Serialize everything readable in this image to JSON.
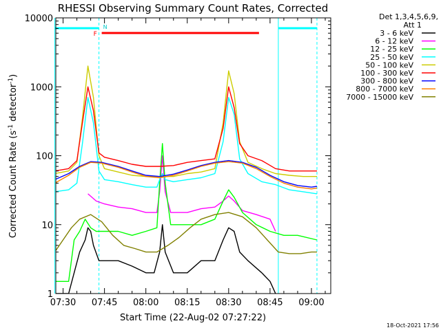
{
  "chart_data": {
    "type": "line",
    "title": "RHESSI Observing Summary Count Rates, Corrected",
    "xlabel": "Start Time (22-Aug-02 07:27:22)",
    "ylabel_main": "Corrected Count Rate (s",
    "ylabel_sup": "-1",
    "ylabel_tail": " detector",
    "ylabel_end": ")",
    "yscale": "log",
    "ylim": [
      1,
      10000
    ],
    "xlim": [
      "07:27:22",
      "09:07:00"
    ],
    "x_ticks": [
      "07:30",
      "07:45",
      "08:00",
      "08:15",
      "08:30",
      "08:45",
      "09:00"
    ],
    "y_ticks": [
      "1",
      "10",
      "100",
      "1000",
      "10000"
    ],
    "grid": false,
    "legend_position": "right",
    "legend_header": [
      "Det 1,3,4,5,6,9,",
      "Att 1"
    ],
    "series": [
      {
        "name": "3 - 6 keV",
        "color": "#000000",
        "points": [
          [
            "07:27",
            1
          ],
          [
            "07:32",
            1
          ],
          [
            "07:36",
            4
          ],
          [
            "07:38",
            6
          ],
          [
            "07:39",
            9
          ],
          [
            "07:40",
            8
          ],
          [
            "07:41",
            5
          ],
          [
            "07:43",
            3
          ],
          [
            "07:45",
            3
          ],
          [
            "07:50",
            3
          ],
          [
            "07:55",
            2.5
          ],
          [
            "08:00",
            2
          ],
          [
            "08:03",
            2
          ],
          [
            "08:05",
            4
          ],
          [
            "08:06",
            10
          ],
          [
            "08:07",
            4
          ],
          [
            "08:10",
            2
          ],
          [
            "08:15",
            2
          ],
          [
            "08:20",
            3
          ],
          [
            "08:25",
            3
          ],
          [
            "08:28",
            6
          ],
          [
            "08:30",
            9
          ],
          [
            "08:32",
            8
          ],
          [
            "08:34",
            4
          ],
          [
            "08:37",
            3
          ],
          [
            "08:42",
            2
          ],
          [
            "08:45",
            1.5
          ],
          [
            "08:47",
            1
          ]
        ]
      },
      {
        "name": "6 - 12 keV",
        "color": "#ff00ff",
        "points": [
          [
            "07:39",
            28
          ],
          [
            "07:42",
            22
          ],
          [
            "07:45",
            20
          ],
          [
            "07:50",
            18
          ],
          [
            "07:55",
            17
          ],
          [
            "08:00",
            15
          ],
          [
            "08:04",
            15
          ],
          [
            "08:05",
            30
          ],
          [
            "08:06",
            100
          ],
          [
            "08:07",
            30
          ],
          [
            "08:09",
            15
          ],
          [
            "08:15",
            15
          ],
          [
            "08:20",
            17
          ],
          [
            "08:25",
            18
          ],
          [
            "08:28",
            22
          ],
          [
            "08:30",
            26
          ],
          [
            "08:32",
            22
          ],
          [
            "08:35",
            16
          ],
          [
            "08:40",
            14
          ],
          [
            "08:45",
            12
          ],
          [
            "08:47",
            8
          ]
        ]
      },
      {
        "name": "12 - 25 keV",
        "color": "#00ff00",
        "points": [
          [
            "07:27",
            1.5
          ],
          [
            "07:32",
            1.5
          ],
          [
            "07:34",
            6
          ],
          [
            "07:36",
            8
          ],
          [
            "07:38",
            12
          ],
          [
            "07:40",
            9
          ],
          [
            "07:42",
            8
          ],
          [
            "07:45",
            8
          ],
          [
            "07:50",
            8
          ],
          [
            "07:55",
            7
          ],
          [
            "08:00",
            8
          ],
          [
            "08:04",
            9
          ],
          [
            "08:05",
            40
          ],
          [
            "08:06",
            150
          ],
          [
            "08:07",
            40
          ],
          [
            "08:09",
            10
          ],
          [
            "08:15",
            10
          ],
          [
            "08:20",
            10
          ],
          [
            "08:25",
            12
          ],
          [
            "08:28",
            22
          ],
          [
            "08:30",
            32
          ],
          [
            "08:32",
            25
          ],
          [
            "08:35",
            15
          ],
          [
            "08:40",
            10
          ],
          [
            "08:45",
            8
          ],
          [
            "08:50",
            7
          ],
          [
            "08:55",
            7
          ],
          [
            "09:02",
            6
          ]
        ]
      },
      {
        "name": "25 - 50 keV",
        "color": "#00ffff",
        "points": [
          [
            "07:27",
            30
          ],
          [
            "07:32",
            32
          ],
          [
            "07:35",
            40
          ],
          [
            "07:37",
            150
          ],
          [
            "07:39",
            700
          ],
          [
            "07:41",
            300
          ],
          [
            "07:43",
            60
          ],
          [
            "07:45",
            45
          ],
          [
            "07:50",
            42
          ],
          [
            "07:55",
            38
          ],
          [
            "08:00",
            35
          ],
          [
            "08:04",
            35
          ],
          [
            "08:05",
            45
          ],
          [
            "08:06",
            55
          ],
          [
            "08:07",
            45
          ],
          [
            "08:10",
            42
          ],
          [
            "08:15",
            45
          ],
          [
            "08:20",
            48
          ],
          [
            "08:25",
            55
          ],
          [
            "08:28",
            160
          ],
          [
            "08:30",
            700
          ],
          [
            "08:32",
            400
          ],
          [
            "08:34",
            90
          ],
          [
            "08:37",
            55
          ],
          [
            "08:42",
            42
          ],
          [
            "08:47",
            38
          ],
          [
            "08:52",
            32
          ],
          [
            "08:57",
            30
          ],
          [
            "09:02",
            28
          ]
        ]
      },
      {
        "name": "50 - 100 keV",
        "color": "#cccc00",
        "points": [
          [
            "07:27",
            55
          ],
          [
            "07:32",
            60
          ],
          [
            "07:35",
            80
          ],
          [
            "07:37",
            350
          ],
          [
            "07:39",
            2000
          ],
          [
            "07:41",
            700
          ],
          [
            "07:43",
            100
          ],
          [
            "07:45",
            65
          ],
          [
            "07:50",
            58
          ],
          [
            "07:55",
            52
          ],
          [
            "08:00",
            50
          ],
          [
            "08:05",
            50
          ],
          [
            "08:10",
            50
          ],
          [
            "08:15",
            55
          ],
          [
            "08:20",
            58
          ],
          [
            "08:25",
            65
          ],
          [
            "08:28",
            300
          ],
          [
            "08:30",
            1700
          ],
          [
            "08:32",
            800
          ],
          [
            "08:34",
            160
          ],
          [
            "08:37",
            80
          ],
          [
            "08:42",
            65
          ],
          [
            "08:47",
            55
          ],
          [
            "08:52",
            52
          ],
          [
            "08:57",
            50
          ],
          [
            "09:02",
            50
          ]
        ]
      },
      {
        "name": "100 - 300 keV",
        "color": "#ff0000",
        "points": [
          [
            "07:27",
            60
          ],
          [
            "07:32",
            65
          ],
          [
            "07:35",
            85
          ],
          [
            "07:37",
            300
          ],
          [
            "07:39",
            1000
          ],
          [
            "07:41",
            450
          ],
          [
            "07:43",
            110
          ],
          [
            "07:45",
            95
          ],
          [
            "07:50",
            85
          ],
          [
            "07:55",
            75
          ],
          [
            "08:00",
            70
          ],
          [
            "08:05",
            70
          ],
          [
            "08:10",
            72
          ],
          [
            "08:15",
            80
          ],
          [
            "08:20",
            85
          ],
          [
            "08:25",
            90
          ],
          [
            "08:28",
            250
          ],
          [
            "08:30",
            1000
          ],
          [
            "08:32",
            500
          ],
          [
            "08:34",
            150
          ],
          [
            "08:37",
            100
          ],
          [
            "08:42",
            85
          ],
          [
            "08:47",
            65
          ],
          [
            "08:52",
            60
          ],
          [
            "08:57",
            60
          ],
          [
            "09:02",
            60
          ]
        ]
      },
      {
        "name": "300 - 800 keV",
        "color": "#0000ff",
        "points": [
          [
            "07:27",
            45
          ],
          [
            "07:32",
            55
          ],
          [
            "07:36",
            70
          ],
          [
            "07:40",
            82
          ],
          [
            "07:44",
            80
          ],
          [
            "07:50",
            70
          ],
          [
            "07:55",
            60
          ],
          [
            "08:00",
            52
          ],
          [
            "08:05",
            50
          ],
          [
            "08:10",
            54
          ],
          [
            "08:15",
            62
          ],
          [
            "08:20",
            72
          ],
          [
            "08:25",
            80
          ],
          [
            "08:30",
            85
          ],
          [
            "08:35",
            80
          ],
          [
            "08:40",
            68
          ],
          [
            "08:45",
            52
          ],
          [
            "08:50",
            42
          ],
          [
            "08:55",
            37
          ],
          [
            "09:00",
            35
          ],
          [
            "09:02",
            36
          ]
        ]
      },
      {
        "name": "800 - 7000 keV",
        "color": "#ff8000",
        "points": [
          [
            "07:27",
            40
          ],
          [
            "07:32",
            52
          ],
          [
            "07:36",
            68
          ],
          [
            "07:40",
            80
          ],
          [
            "07:44",
            78
          ],
          [
            "07:50",
            68
          ],
          [
            "07:55",
            58
          ],
          [
            "08:00",
            50
          ],
          [
            "08:05",
            48
          ],
          [
            "08:10",
            52
          ],
          [
            "08:15",
            60
          ],
          [
            "08:20",
            70
          ],
          [
            "08:25",
            78
          ],
          [
            "08:30",
            82
          ],
          [
            "08:35",
            78
          ],
          [
            "08:40",
            65
          ],
          [
            "08:45",
            50
          ],
          [
            "08:50",
            40
          ],
          [
            "08:55",
            35
          ],
          [
            "09:00",
            33
          ],
          [
            "09:02",
            34
          ]
        ]
      },
      {
        "name": "7000 - 15000 keV",
        "color": "#808000",
        "points": [
          [
            "07:27",
            4
          ],
          [
            "07:30",
            6
          ],
          [
            "07:33",
            9
          ],
          [
            "07:36",
            12
          ],
          [
            "07:40",
            14
          ],
          [
            "07:44",
            11
          ],
          [
            "07:48",
            7
          ],
          [
            "07:52",
            5
          ],
          [
            "07:56",
            4.5
          ],
          [
            "08:00",
            4
          ],
          [
            "08:04",
            4
          ],
          [
            "08:08",
            5
          ],
          [
            "08:12",
            6.5
          ],
          [
            "08:16",
            9
          ],
          [
            "08:20",
            12
          ],
          [
            "08:25",
            14
          ],
          [
            "08:30",
            15
          ],
          [
            "08:35",
            13
          ],
          [
            "08:40",
            9
          ],
          [
            "08:44",
            6
          ],
          [
            "08:48",
            4
          ],
          [
            "08:52",
            3.8
          ],
          [
            "08:56",
            3.8
          ],
          [
            "09:00",
            4
          ],
          [
            "09:02",
            4
          ]
        ]
      }
    ],
    "annotations": {
      "night_bars": [
        [
          "07:27",
          "07:43"
        ],
        [
          "08:48",
          "09:02"
        ]
      ],
      "flare_bar": [
        "07:44",
        "08:41"
      ],
      "flare_marker": "F",
      "night_marker": "N",
      "cyan_lines": [
        "07:27",
        "07:43",
        "08:48",
        "09:02"
      ],
      "flare_bar_color": "#ff0000",
      "night_bar_color": "#00ffff"
    }
  },
  "footer": {
    "timestamp": "18-Oct-2021 17:56"
  }
}
